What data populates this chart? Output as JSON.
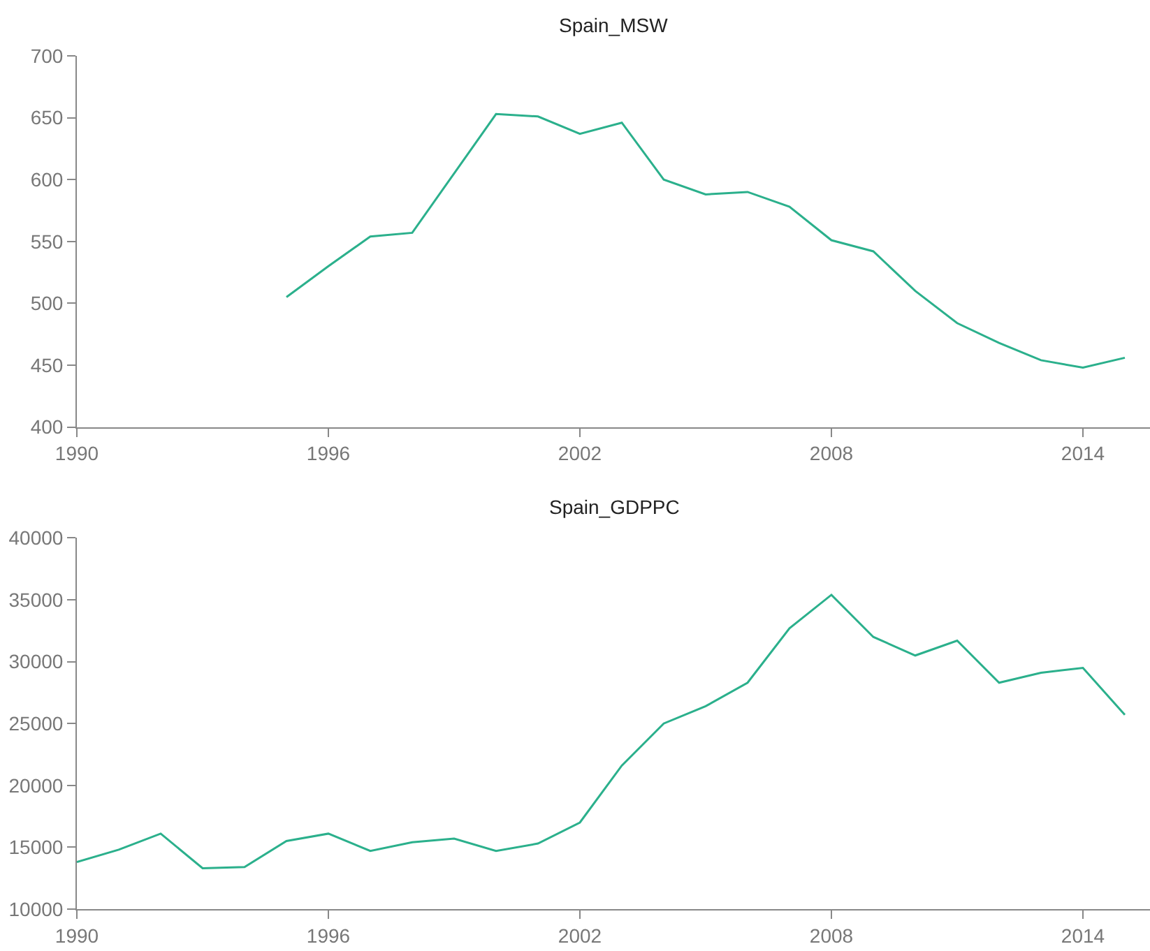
{
  "chart_data": [
    {
      "type": "line",
      "title": "Spain_MSW",
      "x": [
        1995,
        1996,
        1997,
        1998,
        1999,
        2000,
        2001,
        2002,
        2003,
        2004,
        2005,
        2006,
        2007,
        2008,
        2009,
        2010,
        2011,
        2012,
        2013,
        2014,
        2015
      ],
      "series": [
        {
          "color": "#2bb08c",
          "values": [
            505,
            530,
            554,
            557,
            605,
            653,
            651,
            637,
            646,
            600,
            588,
            590,
            578,
            551,
            542,
            510,
            484,
            468,
            454,
            448,
            456
          ]
        }
      ],
      "xlim": [
        1990,
        2015.6
      ],
      "xticks": [
        1990,
        1996,
        2002,
        2008,
        2014
      ],
      "ylim": [
        400,
        700
      ],
      "yticks": [
        400,
        450,
        500,
        550,
        600,
        650,
        700
      ]
    },
    {
      "type": "line",
      "title": "Spain_GDPPC",
      "x": [
        1990,
        1991,
        1992,
        1993,
        1994,
        1995,
        1996,
        1997,
        1998,
        1999,
        2000,
        2001,
        2002,
        2003,
        2004,
        2005,
        2006,
        2007,
        2008,
        2009,
        2010,
        2011,
        2012,
        2013,
        2014,
        2015
      ],
      "series": [
        {
          "color": "#2bb08c",
          "values": [
            13800,
            14800,
            16100,
            13300,
            13400,
            15500,
            16100,
            14700,
            15400,
            15700,
            14700,
            15300,
            17000,
            21600,
            25000,
            26400,
            28300,
            32700,
            35400,
            32000,
            30500,
            31700,
            28300,
            29100,
            29500,
            25700
          ]
        }
      ],
      "xlim": [
        1990,
        2015.6
      ],
      "xticks": [
        1990,
        1996,
        2002,
        2008,
        2014
      ],
      "ylim": [
        10000,
        40000
      ],
      "yticks": [
        10000,
        15000,
        20000,
        25000,
        30000,
        35000,
        40000
      ]
    }
  ]
}
